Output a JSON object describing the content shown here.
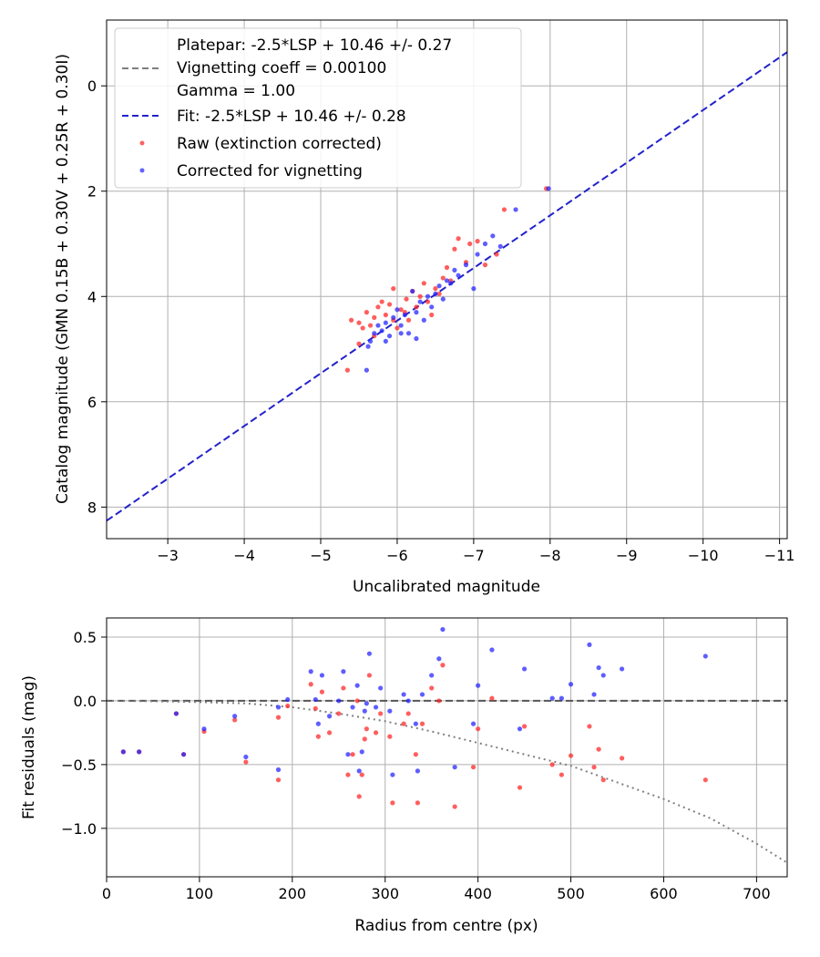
{
  "chart_data": [
    {
      "type": "scatter",
      "xlabel": "Uncalibrated magnitude",
      "ylabel": "Catalog magnitude (GMN 0.15B + 0.30V + 0.25R + 0.30I)",
      "xlim": [
        -2.2,
        -11.1
      ],
      "ylim": [
        8.6,
        -1.25
      ],
      "x_inverted": true,
      "y_inverted": true,
      "grid": true,
      "xticks": [
        -3,
        -4,
        -5,
        -6,
        -7,
        -8,
        -9,
        -10,
        -11
      ],
      "yticks": [
        0,
        2,
        4,
        6,
        8
      ],
      "xtick_labels": [
        "−3",
        "−4",
        "−5",
        "−6",
        "−7",
        "−8",
        "−9",
        "−10",
        "−11"
      ],
      "ytick_labels": [
        "0",
        "2",
        "4",
        "6",
        "8"
      ],
      "legend_position": "top-left",
      "lines": [
        {
          "name": "Platepar: -2.5*LSP + 10.46 +/- 0.27\nVignetting coeff = 0.00100\nGamma = 1.00",
          "color": "#7f7f7f",
          "style": "dashed",
          "x": [
            -2.2,
            -11.1
          ],
          "y": [
            8.26,
            -0.64
          ],
          "visible": false
        },
        {
          "name": "Fit: -2.5*LSP + 10.46 +/- 0.28",
          "color": "#2222cc",
          "style": "dashed",
          "x": [
            -2.2,
            -11.1
          ],
          "y": [
            8.26,
            -0.64
          ]
        }
      ],
      "series": [
        {
          "name": "Raw (extinction corrected)",
          "color": "#ff2020",
          "points": [
            [
              -5.35,
              5.4
            ],
            [
              -5.4,
              4.45
            ],
            [
              -5.5,
              4.5
            ],
            [
              -5.55,
              4.6
            ],
            [
              -5.6,
              4.3
            ],
            [
              -5.65,
              4.55
            ],
            [
              -5.7,
              4.4
            ],
            [
              -5.75,
              4.2
            ],
            [
              -5.8,
              4.1
            ],
            [
              -5.85,
              4.35
            ],
            [
              -5.9,
              4.15
            ],
            [
              -5.95,
              3.85
            ],
            [
              -6.0,
              4.6
            ],
            [
              -6.05,
              4.25
            ],
            [
              -6.1,
              4.3
            ],
            [
              -6.12,
              4.05
            ],
            [
              -6.15,
              4.45
            ],
            [
              -6.2,
              3.9
            ],
            [
              -6.25,
              4.2
            ],
            [
              -6.3,
              4.0
            ],
            [
              -6.35,
              3.75
            ],
            [
              -6.4,
              4.1
            ],
            [
              -6.45,
              4.35
            ],
            [
              -6.5,
              3.85
            ],
            [
              -6.55,
              3.95
            ],
            [
              -6.6,
              3.65
            ],
            [
              -6.65,
              3.45
            ],
            [
              -6.7,
              3.7
            ],
            [
              -6.75,
              3.1
            ],
            [
              -6.8,
              2.9
            ],
            [
              -6.9,
              3.35
            ],
            [
              -6.95,
              3.0
            ],
            [
              -7.05,
              2.95
            ],
            [
              -7.15,
              3.4
            ],
            [
              -7.3,
              3.2
            ],
            [
              -7.4,
              2.35
            ],
            [
              -7.95,
              1.95
            ],
            [
              -5.5,
              4.9
            ],
            [
              -5.7,
              4.75
            ],
            [
              -5.95,
              4.45
            ]
          ]
        },
        {
          "name": "Corrected for vignetting",
          "color": "#2020ff",
          "points": [
            [
              -5.6,
              5.4
            ],
            [
              -5.62,
              4.95
            ],
            [
              -5.65,
              4.85
            ],
            [
              -5.7,
              4.7
            ],
            [
              -5.75,
              4.55
            ],
            [
              -5.8,
              4.65
            ],
            [
              -5.85,
              4.5
            ],
            [
              -5.9,
              4.75
            ],
            [
              -5.95,
              4.4
            ],
            [
              -6.0,
              4.25
            ],
            [
              -6.05,
              4.55
            ],
            [
              -6.1,
              4.35
            ],
            [
              -6.15,
              4.7
            ],
            [
              -6.2,
              3.9
            ],
            [
              -6.25,
              4.3
            ],
            [
              -6.3,
              4.1
            ],
            [
              -6.35,
              4.45
            ],
            [
              -6.4,
              4.0
            ],
            [
              -6.45,
              4.2
            ],
            [
              -6.5,
              3.95
            ],
            [
              -6.55,
              3.8
            ],
            [
              -6.6,
              4.05
            ],
            [
              -6.65,
              3.7
            ],
            [
              -6.7,
              3.75
            ],
            [
              -6.75,
              3.5
            ],
            [
              -6.8,
              3.6
            ],
            [
              -6.9,
              3.4
            ],
            [
              -7.0,
              3.85
            ],
            [
              -7.05,
              3.2
            ],
            [
              -7.15,
              3.0
            ],
            [
              -7.25,
              2.85
            ],
            [
              -7.35,
              3.05
            ],
            [
              -7.55,
              2.35
            ],
            [
              -7.98,
              1.95
            ],
            [
              -6.05,
              4.7
            ],
            [
              -6.25,
              4.8
            ],
            [
              -5.85,
              4.85
            ]
          ]
        }
      ]
    },
    {
      "type": "scatter",
      "xlabel": "Radius from centre (px)",
      "ylabel": "Fit residuals (mag)",
      "xlim": [
        0,
        733
      ],
      "ylim": [
        -1.38,
        0.65
      ],
      "grid": true,
      "xticks": [
        0,
        100,
        200,
        300,
        400,
        500,
        600,
        700
      ],
      "yticks": [
        0.5,
        0.0,
        -0.5,
        -1.0
      ],
      "xtick_labels": [
        "0",
        "100",
        "200",
        "300",
        "400",
        "500",
        "600",
        "700"
      ],
      "ytick_labels": [
        "0.5",
        "0.0",
        "−0.5",
        "−1.0"
      ],
      "lines": [
        {
          "name": "zero",
          "color": "#555555",
          "style": "dashed",
          "x": [
            0,
            733
          ],
          "y": [
            0,
            0
          ]
        },
        {
          "name": "vignetting",
          "color": "#7f7f7f",
          "style": "dotted",
          "x": [
            0,
            50,
            100,
            150,
            200,
            250,
            300,
            350,
            400,
            450,
            500,
            550,
            600,
            650,
            700,
            733
          ],
          "y": [
            0,
            -0.003,
            -0.01,
            -0.02,
            -0.05,
            -0.1,
            -0.16,
            -0.24,
            -0.33,
            -0.42,
            -0.51,
            -0.64,
            -0.77,
            -0.92,
            -1.12,
            -1.27
          ]
        }
      ],
      "series": [
        {
          "name": "Raw (extinction corrected)",
          "color": "#ff2020",
          "points": [
            [
              18,
              -0.4
            ],
            [
              35,
              -0.4
            ],
            [
              75,
              -0.1
            ],
            [
              83,
              -0.42
            ],
            [
              105,
              -0.24
            ],
            [
              138,
              -0.15
            ],
            [
              150,
              -0.48
            ],
            [
              185,
              -0.13
            ],
            [
              185,
              -0.62
            ],
            [
              195,
              -0.04
            ],
            [
              220,
              0.13
            ],
            [
              225,
              -0.06
            ],
            [
              228,
              -0.28
            ],
            [
              232,
              0.07
            ],
            [
              240,
              -0.25
            ],
            [
              250,
              -0.1
            ],
            [
              255,
              0.1
            ],
            [
              260,
              -0.58
            ],
            [
              265,
              -0.42
            ],
            [
              270,
              0.0
            ],
            [
              272,
              -0.75
            ],
            [
              275,
              -0.58
            ],
            [
              278,
              -0.3
            ],
            [
              280,
              -0.22
            ],
            [
              283,
              0.2
            ],
            [
              290,
              -0.25
            ],
            [
              295,
              -0.1
            ],
            [
              305,
              -0.28
            ],
            [
              308,
              -0.8
            ],
            [
              320,
              -0.18
            ],
            [
              325,
              -0.1
            ],
            [
              333,
              -0.42
            ],
            [
              335,
              -0.8
            ],
            [
              340,
              -0.18
            ],
            [
              350,
              0.1
            ],
            [
              358,
              0.0
            ],
            [
              362,
              0.28
            ],
            [
              375,
              -0.83
            ],
            [
              395,
              -0.52
            ],
            [
              400,
              -0.22
            ],
            [
              415,
              0.02
            ],
            [
              445,
              -0.68
            ],
            [
              450,
              -0.2
            ],
            [
              480,
              -0.5
            ],
            [
              490,
              -0.58
            ],
            [
              500,
              -0.43
            ],
            [
              520,
              -0.2
            ],
            [
              525,
              -0.52
            ],
            [
              530,
              -0.38
            ],
            [
              535,
              -0.62
            ],
            [
              555,
              -0.45
            ],
            [
              645,
              -0.62
            ]
          ]
        },
        {
          "name": "Corrected for vignetting",
          "color": "#2020ff",
          "points": [
            [
              18,
              -0.4
            ],
            [
              35,
              -0.4
            ],
            [
              75,
              -0.1
            ],
            [
              83,
              -0.42
            ],
            [
              105,
              -0.22
            ],
            [
              138,
              -0.12
            ],
            [
              150,
              -0.44
            ],
            [
              185,
              -0.05
            ],
            [
              185,
              -0.54
            ],
            [
              195,
              0.01
            ],
            [
              220,
              0.23
            ],
            [
              225,
              0.01
            ],
            [
              228,
              -0.18
            ],
            [
              232,
              0.2
            ],
            [
              240,
              -0.12
            ],
            [
              250,
              0.0
            ],
            [
              255,
              0.23
            ],
            [
              260,
              -0.42
            ],
            [
              265,
              -0.05
            ],
            [
              270,
              0.12
            ],
            [
              272,
              -0.55
            ],
            [
              275,
              -0.4
            ],
            [
              278,
              -0.08
            ],
            [
              280,
              -0.02
            ],
            [
              283,
              0.37
            ],
            [
              290,
              -0.05
            ],
            [
              295,
              0.1
            ],
            [
              305,
              -0.08
            ],
            [
              308,
              -0.58
            ],
            [
              320,
              0.05
            ],
            [
              325,
              0.0
            ],
            [
              333,
              -0.18
            ],
            [
              335,
              -0.55
            ],
            [
              340,
              0.05
            ],
            [
              350,
              0.2
            ],
            [
              358,
              0.33
            ],
            [
              362,
              0.56
            ],
            [
              375,
              -0.52
            ],
            [
              395,
              -0.18
            ],
            [
              400,
              0.12
            ],
            [
              415,
              0.4
            ],
            [
              445,
              -0.22
            ],
            [
              450,
              0.25
            ],
            [
              480,
              0.02
            ],
            [
              490,
              0.02
            ],
            [
              500,
              0.13
            ],
            [
              520,
              0.44
            ],
            [
              525,
              0.05
            ],
            [
              530,
              0.26
            ],
            [
              535,
              0.2
            ],
            [
              555,
              0.25
            ],
            [
              645,
              0.35
            ]
          ]
        }
      ]
    }
  ]
}
